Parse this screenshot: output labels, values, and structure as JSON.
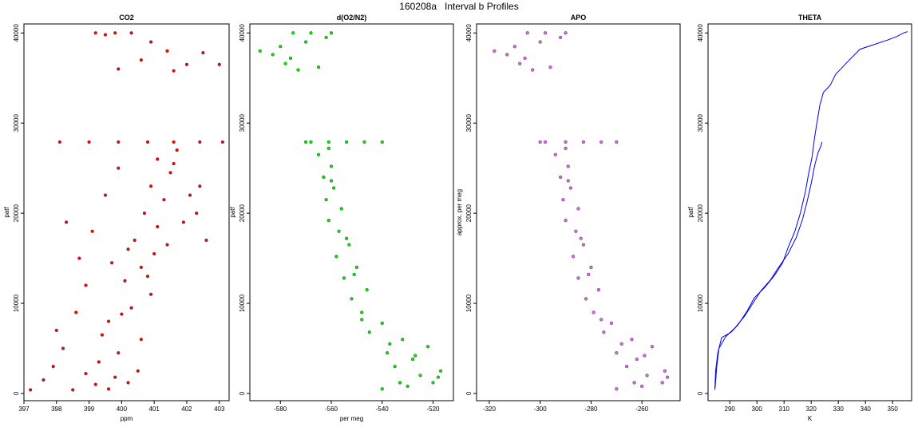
{
  "title": "160208a   Interval b Profiles",
  "chart_data": [
    {
      "type": "scatter",
      "title": "CO2",
      "xlabel": "ppm",
      "ylabel": "patf",
      "xlim": [
        397,
        403.3
      ],
      "ylim": [
        -800,
        41000
      ],
      "xticks": [
        397,
        398,
        399,
        400,
        401,
        402,
        403
      ],
      "yticks": [
        0,
        10000,
        20000,
        30000,
        40000
      ],
      "color": "#ff0000",
      "series": [
        {
          "values": [
            [
              397.2,
              400
            ],
            [
              397.6,
              1500
            ],
            [
              397.9,
              3000
            ],
            [
              398.2,
              5000
            ],
            [
              398.0,
              7000
            ],
            [
              398.6,
              9000
            ],
            [
              398.9,
              12000
            ],
            [
              398.7,
              15000
            ],
            [
              399.1,
              18000
            ],
            [
              398.3,
              19000
            ],
            [
              399.5,
              22000
            ],
            [
              399.9,
              25000
            ],
            [
              398.5,
              400
            ],
            [
              399.2,
              1000
            ],
            [
              399.8,
              1800
            ],
            [
              400.5,
              2500
            ],
            [
              399.3,
              3500
            ],
            [
              399.9,
              4500
            ],
            [
              400.6,
              6000
            ],
            [
              399.6,
              8000
            ],
            [
              400.3,
              9500
            ],
            [
              400.9,
              11000
            ],
            [
              400.1,
              12500
            ],
            [
              400.6,
              14000
            ],
            [
              401.0,
              15500
            ],
            [
              400.4,
              17000
            ],
            [
              401.1,
              18500
            ],
            [
              400.7,
              20000
            ],
            [
              401.3,
              21500
            ],
            [
              400.9,
              23000
            ],
            [
              401.5,
              24500
            ],
            [
              401.1,
              26000
            ],
            [
              401.7,
              27000
            ],
            [
              402.3,
              20000
            ],
            [
              402.6,
              17000
            ],
            [
              402.1,
              22000
            ],
            [
              399.6,
              500
            ],
            [
              400.2,
              1200
            ],
            [
              398.9,
              2200
            ],
            [
              399.4,
              6500
            ],
            [
              400.0,
              8800
            ],
            [
              400.8,
              13000
            ],
            [
              401.4,
              16500
            ],
            [
              401.9,
              19000
            ],
            [
              402.4,
              23000
            ],
            [
              401.6,
              25500
            ],
            [
              400.2,
              16000
            ],
            [
              399.7,
              14500
            ],
            [
              399.0,
              27900
            ],
            [
              399.9,
              27900
            ],
            [
              400.8,
              27900
            ],
            [
              401.6,
              27900
            ],
            [
              402.4,
              27900
            ],
            [
              403.1,
              27900
            ],
            [
              398.1,
              27900
            ],
            [
              399.2,
              40000
            ],
            [
              399.8,
              40000
            ],
            [
              400.3,
              40000
            ],
            [
              400.9,
              39000
            ],
            [
              401.4,
              38000
            ],
            [
              402.0,
              36500
            ],
            [
              402.5,
              37800
            ],
            [
              403.0,
              36500
            ],
            [
              399.9,
              36000
            ],
            [
              400.6,
              37000
            ],
            [
              401.6,
              35800
            ],
            [
              399.5,
              39800
            ]
          ]
        }
      ]
    },
    {
      "type": "scatter",
      "title": "d(O2/N2)",
      "xlabel": "per meg",
      "ylabel": "patf",
      "xlim": [
        -592,
        -512
      ],
      "ylim": [
        -800,
        41000
      ],
      "xticks": [
        -580,
        -560,
        -540,
        -520
      ],
      "yticks": [
        0,
        10000,
        20000,
        30000,
        40000
      ],
      "color": "#00ee00",
      "series": [
        {
          "values": [
            [
              -540,
              500
            ],
            [
              -530,
              800
            ],
            [
              -520,
              1200
            ],
            [
              -525,
              2000
            ],
            [
              -535,
              3000
            ],
            [
              -518,
              1800
            ],
            [
              -528,
              3800
            ],
            [
              -538,
              4500
            ],
            [
              -522,
              5200
            ],
            [
              -532,
              6000
            ],
            [
              -545,
              6800
            ],
            [
              -540,
              7800
            ],
            [
              -548,
              9000
            ],
            [
              -552,
              10500
            ],
            [
              -546,
              11500
            ],
            [
              -555,
              12800
            ],
            [
              -550,
              14000
            ],
            [
              -558,
              15200
            ],
            [
              -553,
              16500
            ],
            [
              -557,
              18000
            ],
            [
              -561,
              19200
            ],
            [
              -556,
              20500
            ],
            [
              -562,
              21500
            ],
            [
              -559,
              22800
            ],
            [
              -563,
              24000
            ],
            [
              -560,
              25200
            ],
            [
              -565,
              26500
            ],
            [
              -561,
              27200
            ],
            [
              -537,
              5500
            ],
            [
              -527,
              4200
            ],
            [
              -517,
              2500
            ],
            [
              -533,
              1200
            ],
            [
              -548,
              8200
            ],
            [
              -551,
              13200
            ],
            [
              -554,
              17200
            ],
            [
              -560,
              23600
            ],
            [
              -568,
              27900
            ],
            [
              -561,
              27900
            ],
            [
              -554,
              27900
            ],
            [
              -547,
              27900
            ],
            [
              -540,
              27900
            ],
            [
              -570,
              27900
            ],
            [
              -575,
              40000
            ],
            [
              -568,
              40000
            ],
            [
              -562,
              39500
            ],
            [
              -580,
              38500
            ],
            [
              -588,
              38000
            ],
            [
              -576,
              37200
            ],
            [
              -565,
              36200
            ],
            [
              -570,
              39000
            ],
            [
              -583,
              37600
            ],
            [
              -573,
              35900
            ],
            [
              -560,
              40000
            ],
            [
              -578,
              36600
            ]
          ]
        }
      ]
    },
    {
      "type": "scatter",
      "title": "APO",
      "xlabel": "",
      "ylabel": "approx. per meg",
      "xlim": [
        -325,
        -245
      ],
      "ylim": [
        -800,
        41000
      ],
      "xticks": [
        -320,
        -300,
        -280,
        -260
      ],
      "yticks": [
        0,
        10000,
        20000,
        30000,
        40000
      ],
      "color": "#dd66ee",
      "series": [
        {
          "values": [
            [
              -270,
              500
            ],
            [
              -260,
              800
            ],
            [
              -252,
              1200
            ],
            [
              -258,
              2000
            ],
            [
              -266,
              3000
            ],
            [
              -250,
              1800
            ],
            [
              -262,
              3800
            ],
            [
              -270,
              4500
            ],
            [
              -256,
              5200
            ],
            [
              -264,
              6000
            ],
            [
              -275,
              6800
            ],
            [
              -272,
              7800
            ],
            [
              -279,
              9000
            ],
            [
              -282,
              10500
            ],
            [
              -277,
              11500
            ],
            [
              -285,
              12800
            ],
            [
              -280,
              14000
            ],
            [
              -287,
              15200
            ],
            [
              -283,
              16500
            ],
            [
              -286,
              18000
            ],
            [
              -290,
              19200
            ],
            [
              -285,
              20500
            ],
            [
              -291,
              21500
            ],
            [
              -288,
              22800
            ],
            [
              -292,
              24000
            ],
            [
              -289,
              25200
            ],
            [
              -294,
              26500
            ],
            [
              -290,
              27200
            ],
            [
              -268,
              5500
            ],
            [
              -259,
              4200
            ],
            [
              -251,
              2500
            ],
            [
              -263,
              1200
            ],
            [
              -276,
              8200
            ],
            [
              -281,
              13200
            ],
            [
              -284,
              17200
            ],
            [
              -289,
              23600
            ],
            [
              -298,
              27900
            ],
            [
              -290,
              27900
            ],
            [
              -283,
              27900
            ],
            [
              -276,
              27900
            ],
            [
              -270,
              27900
            ],
            [
              -300,
              27900
            ],
            [
              -305,
              40000
            ],
            [
              -298,
              40000
            ],
            [
              -292,
              39500
            ],
            [
              -310,
              38500
            ],
            [
              -318,
              38000
            ],
            [
              -306,
              37200
            ],
            [
              -296,
              36200
            ],
            [
              -300,
              39000
            ],
            [
              -313,
              37600
            ],
            [
              -303,
              35900
            ],
            [
              -290,
              40000
            ],
            [
              -308,
              36600
            ]
          ]
        }
      ]
    },
    {
      "type": "line",
      "title": "THETA",
      "xlabel": "K",
      "ylabel": "patf",
      "xlim": [
        282,
        357
      ],
      "ylim": [
        -800,
        41000
      ],
      "xticks": [
        290,
        300,
        310,
        320,
        330,
        340,
        350
      ],
      "yticks": [
        0,
        10000,
        20000,
        30000,
        40000
      ],
      "color": "#0000ee",
      "series": [
        {
          "values": [
            [
              284.5,
              400
            ],
            [
              284.8,
              2500
            ],
            [
              285.6,
              4500
            ],
            [
              287,
              6200
            ],
            [
              290.5,
              6800
            ],
            [
              293,
              7600
            ],
            [
              296.5,
              9200
            ],
            [
              299,
              10600
            ],
            [
              303,
              11800
            ],
            [
              306.5,
              13100
            ],
            [
              309.5,
              14500
            ],
            [
              311.5,
              16200
            ],
            [
              314,
              18000
            ],
            [
              316,
              20000
            ],
            [
              317.8,
              22300
            ],
            [
              319,
              24300
            ],
            [
              320.3,
              26200
            ],
            [
              321.2,
              28300
            ],
            [
              322.2,
              30200
            ],
            [
              323.2,
              32000
            ],
            [
              324.5,
              33400
            ],
            [
              327,
              34200
            ],
            [
              329,
              35400
            ],
            [
              331.5,
              36200
            ],
            [
              335,
              37300
            ],
            [
              338,
              38200
            ],
            [
              343,
              38700
            ],
            [
              348,
              39200
            ],
            [
              351.5,
              39600
            ],
            [
              354,
              40000
            ],
            [
              355.5,
              40150
            ]
          ]
        },
        {
          "values": [
            [
              284.6,
              600
            ],
            [
              285.2,
              3000
            ],
            [
              286,
              5000
            ],
            [
              288.5,
              6300
            ],
            [
              292,
              7300
            ],
            [
              295.5,
              8600
            ],
            [
              298.5,
              10000
            ],
            [
              301.5,
              11400
            ],
            [
              305,
              12600
            ],
            [
              308,
              14000
            ],
            [
              311.5,
              15500
            ],
            [
              314.5,
              17300
            ],
            [
              316.8,
              19300
            ],
            [
              318.5,
              21300
            ],
            [
              320,
              23300
            ],
            [
              321.3,
              25300
            ],
            [
              322.5,
              26700
            ],
            [
              323.5,
              27400
            ],
            [
              324,
              27900
            ]
          ]
        }
      ]
    }
  ]
}
